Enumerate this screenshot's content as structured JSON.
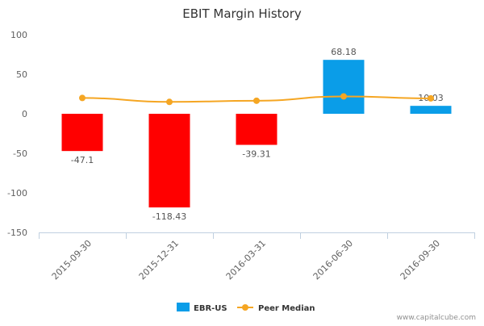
{
  "chart_data": {
    "type": "bar",
    "title": "EBIT Margin History",
    "categories": [
      "2015-09-30",
      "2015-12-31",
      "2016-03-31",
      "2016-06-30",
      "2016-09-30"
    ],
    "series": [
      {
        "name": "EBR-US",
        "type": "bar",
        "values": [
          -47.1,
          -118.43,
          -39.31,
          68.18,
          10.03
        ],
        "data_labels": [
          "-47.1",
          "-118.43",
          "-39.31",
          "68.18",
          "10.03"
        ],
        "color_positive": "#0a9de8",
        "color_negative": "#ff0000"
      },
      {
        "name": "Peer Median",
        "type": "line",
        "values": [
          20,
          15,
          16.5,
          22,
          19.5
        ],
        "color": "#f5a623"
      }
    ],
    "ylim": [
      -150,
      100
    ],
    "yticks": [
      100,
      50,
      0,
      -50,
      -100,
      -150
    ],
    "xlabel": "",
    "ylabel": "",
    "grid": false,
    "legend_position": "bottom"
  },
  "watermark": "www.capitalcube.com",
  "colors": {
    "axis": "#c0d0e0",
    "tick_text": "#606060",
    "title_text": "#333333",
    "label_text": "#555555"
  }
}
